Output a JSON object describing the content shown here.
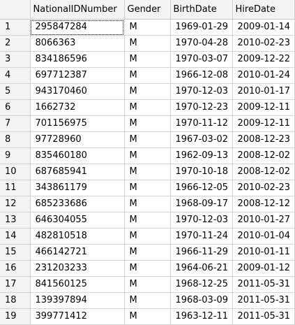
{
  "columns": [
    "",
    "NationalIDNumber",
    "Gender",
    "BirthDate",
    "HireDate"
  ],
  "rows": [
    [
      "1",
      "295847284",
      "M",
      "1969-01-29",
      "2009-01-14"
    ],
    [
      "2",
      "8066363",
      "M",
      "1970-04-28",
      "2010-02-23"
    ],
    [
      "3",
      "834186596",
      "M",
      "1970-03-07",
      "2009-12-22"
    ],
    [
      "4",
      "697712387",
      "M",
      "1966-12-08",
      "2010-01-24"
    ],
    [
      "5",
      "943170460",
      "M",
      "1970-12-03",
      "2010-01-17"
    ],
    [
      "6",
      "1662732",
      "M",
      "1970-12-23",
      "2009-12-11"
    ],
    [
      "7",
      "701156975",
      "M",
      "1970-11-12",
      "2009-12-11"
    ],
    [
      "8",
      "97728960",
      "M",
      "1967-03-02",
      "2008-12-23"
    ],
    [
      "9",
      "835460180",
      "M",
      "1962-09-13",
      "2008-12-02"
    ],
    [
      "10",
      "687685941",
      "M",
      "1970-10-18",
      "2008-12-02"
    ],
    [
      "11",
      "343861179",
      "M",
      "1966-12-05",
      "2010-02-23"
    ],
    [
      "12",
      "685233686",
      "M",
      "1968-09-17",
      "2008-12-12"
    ],
    [
      "13",
      "646304055",
      "M",
      "1970-12-03",
      "2010-01-27"
    ],
    [
      "14",
      "482810518",
      "M",
      "1970-11-24",
      "2010-01-04"
    ],
    [
      "15",
      "466142721",
      "M",
      "1966-11-29",
      "2010-01-11"
    ],
    [
      "16",
      "231203233",
      "M",
      "1964-06-21",
      "2009-01-12"
    ],
    [
      "17",
      "841560125",
      "M",
      "1968-12-25",
      "2011-05-31"
    ],
    [
      "18",
      "139397894",
      "M",
      "1968-03-09",
      "2011-05-31"
    ],
    [
      "19",
      "399771412",
      "M",
      "1963-12-11",
      "2011-05-31"
    ]
  ]
}
